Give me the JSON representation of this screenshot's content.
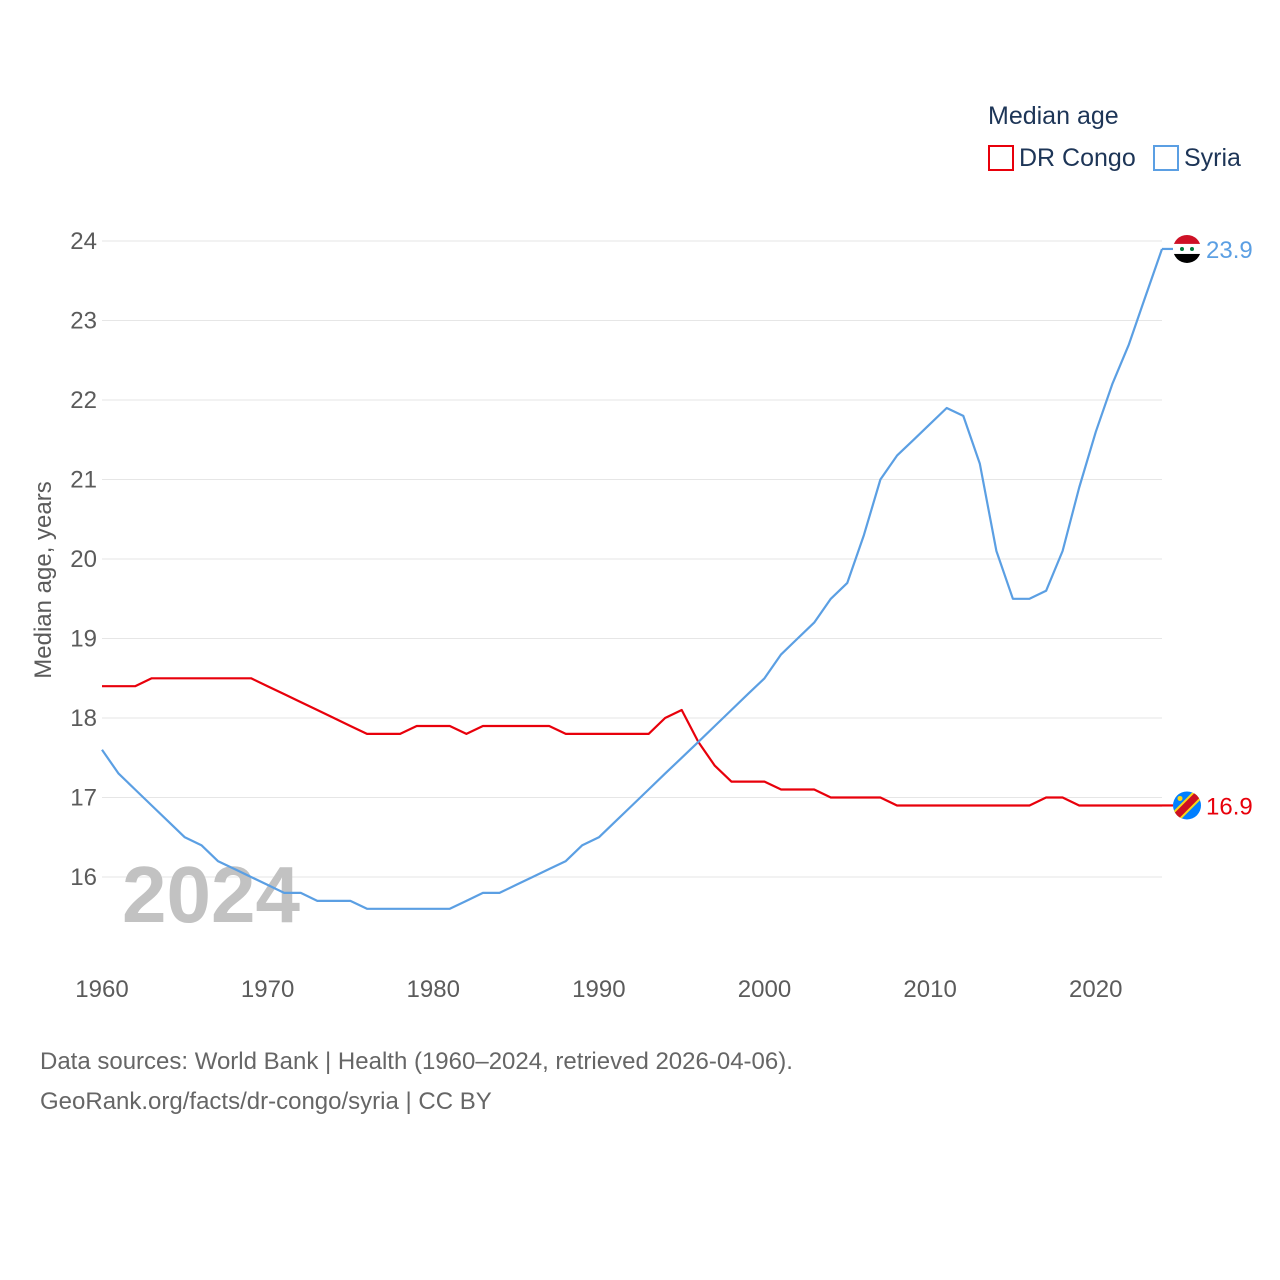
{
  "chart_data": {
    "type": "line",
    "title": "",
    "legend_title": "Median age",
    "xlabel": "",
    "ylabel": "Median age, years",
    "xlim": [
      1960,
      2024
    ],
    "ylim": [
      15,
      24.3
    ],
    "xticks": [
      1960,
      1970,
      1980,
      1990,
      2000,
      2010,
      2020
    ],
    "yticks": [
      16,
      17,
      18,
      19,
      20,
      21,
      22,
      23,
      24
    ],
    "year_label": "2024",
    "x": [
      1960,
      1961,
      1962,
      1963,
      1964,
      1965,
      1966,
      1967,
      1968,
      1969,
      1970,
      1971,
      1972,
      1973,
      1974,
      1975,
      1976,
      1977,
      1978,
      1979,
      1980,
      1981,
      1982,
      1983,
      1984,
      1985,
      1986,
      1987,
      1988,
      1989,
      1990,
      1991,
      1992,
      1993,
      1994,
      1995,
      1996,
      1997,
      1998,
      1999,
      2000,
      2001,
      2002,
      2003,
      2004,
      2005,
      2006,
      2007,
      2008,
      2009,
      2010,
      2011,
      2012,
      2013,
      2014,
      2015,
      2016,
      2017,
      2018,
      2019,
      2020,
      2021,
      2022,
      2023,
      2024
    ],
    "series": [
      {
        "name": "DR Congo",
        "color": "#e8000b",
        "end_label": "16.9",
        "flag": "dr-congo-flag",
        "values": [
          18.4,
          18.4,
          18.4,
          18.5,
          18.5,
          18.5,
          18.5,
          18.5,
          18.5,
          18.5,
          18.4,
          18.3,
          18.2,
          18.1,
          18.0,
          17.9,
          17.8,
          17.8,
          17.8,
          17.9,
          17.9,
          17.9,
          17.8,
          17.9,
          17.9,
          17.9,
          17.9,
          17.9,
          17.8,
          17.8,
          17.8,
          17.8,
          17.8,
          17.8,
          18.0,
          18.1,
          17.7,
          17.4,
          17.2,
          17.2,
          17.2,
          17.1,
          17.1,
          17.1,
          17.0,
          17.0,
          17.0,
          17.0,
          16.9,
          16.9,
          16.9,
          16.9,
          16.9,
          16.9,
          16.9,
          16.9,
          16.9,
          17.0,
          17.0,
          16.9,
          16.9,
          16.9,
          16.9,
          16.9,
          16.9
        ]
      },
      {
        "name": "Syria",
        "color": "#5b9fe3",
        "end_label": "23.9",
        "flag": "syria-flag",
        "values": [
          17.6,
          17.3,
          17.1,
          16.9,
          16.7,
          16.5,
          16.4,
          16.2,
          16.1,
          16.0,
          15.9,
          15.8,
          15.8,
          15.7,
          15.7,
          15.7,
          15.6,
          15.6,
          15.6,
          15.6,
          15.6,
          15.6,
          15.7,
          15.8,
          15.8,
          15.9,
          16.0,
          16.1,
          16.2,
          16.4,
          16.5,
          16.7,
          16.9,
          17.1,
          17.3,
          17.5,
          17.7,
          17.9,
          18.1,
          18.3,
          18.5,
          18.8,
          19.0,
          19.2,
          19.5,
          19.7,
          20.3,
          21.0,
          21.3,
          21.5,
          21.7,
          21.9,
          21.8,
          21.2,
          20.1,
          19.5,
          19.5,
          19.6,
          20.1,
          20.9,
          21.6,
          22.2,
          22.7,
          23.3,
          23.9
        ]
      }
    ]
  },
  "footer": {
    "line1": "Data sources: World Bank | Health (1960–2024, retrieved 2026-04-06).",
    "line2": "GeoRank.org/facts/dr-congo/syria | CC BY"
  }
}
